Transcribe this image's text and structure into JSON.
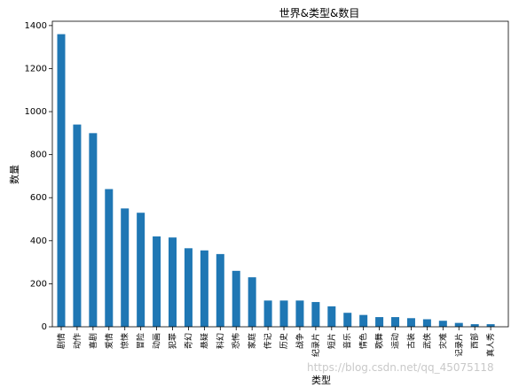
{
  "chart_data": {
    "type": "bar",
    "title": "世界&类型&数目",
    "xlabel": "类型",
    "ylabel": "数量",
    "ylim": [
      0,
      1420
    ],
    "yticks": [
      0,
      200,
      400,
      600,
      800,
      1000,
      1200,
      1400
    ],
    "grid": false,
    "bar_color": "#1f77b4",
    "categories": [
      "剧情",
      "动作",
      "喜剧",
      "爱情",
      "惊悚",
      "冒险",
      "动画",
      "犯罪",
      "奇幻",
      "悬疑",
      "科幻",
      "恐怖",
      "家庭",
      "传记",
      "历史",
      "战争",
      "纪录片",
      "短片",
      "音乐",
      "情色",
      "歌舞",
      "运动",
      "古装",
      "武侠",
      "灾难",
      "记录片",
      "西部",
      "真人秀"
    ],
    "values": [
      1360,
      940,
      900,
      640,
      550,
      530,
      420,
      415,
      365,
      355,
      338,
      260,
      230,
      122,
      122,
      122,
      115,
      95,
      65,
      55,
      45,
      45,
      40,
      35,
      28,
      18,
      12,
      12
    ]
  },
  "watermark": "https://blog.csdn.net/qq_45075118"
}
